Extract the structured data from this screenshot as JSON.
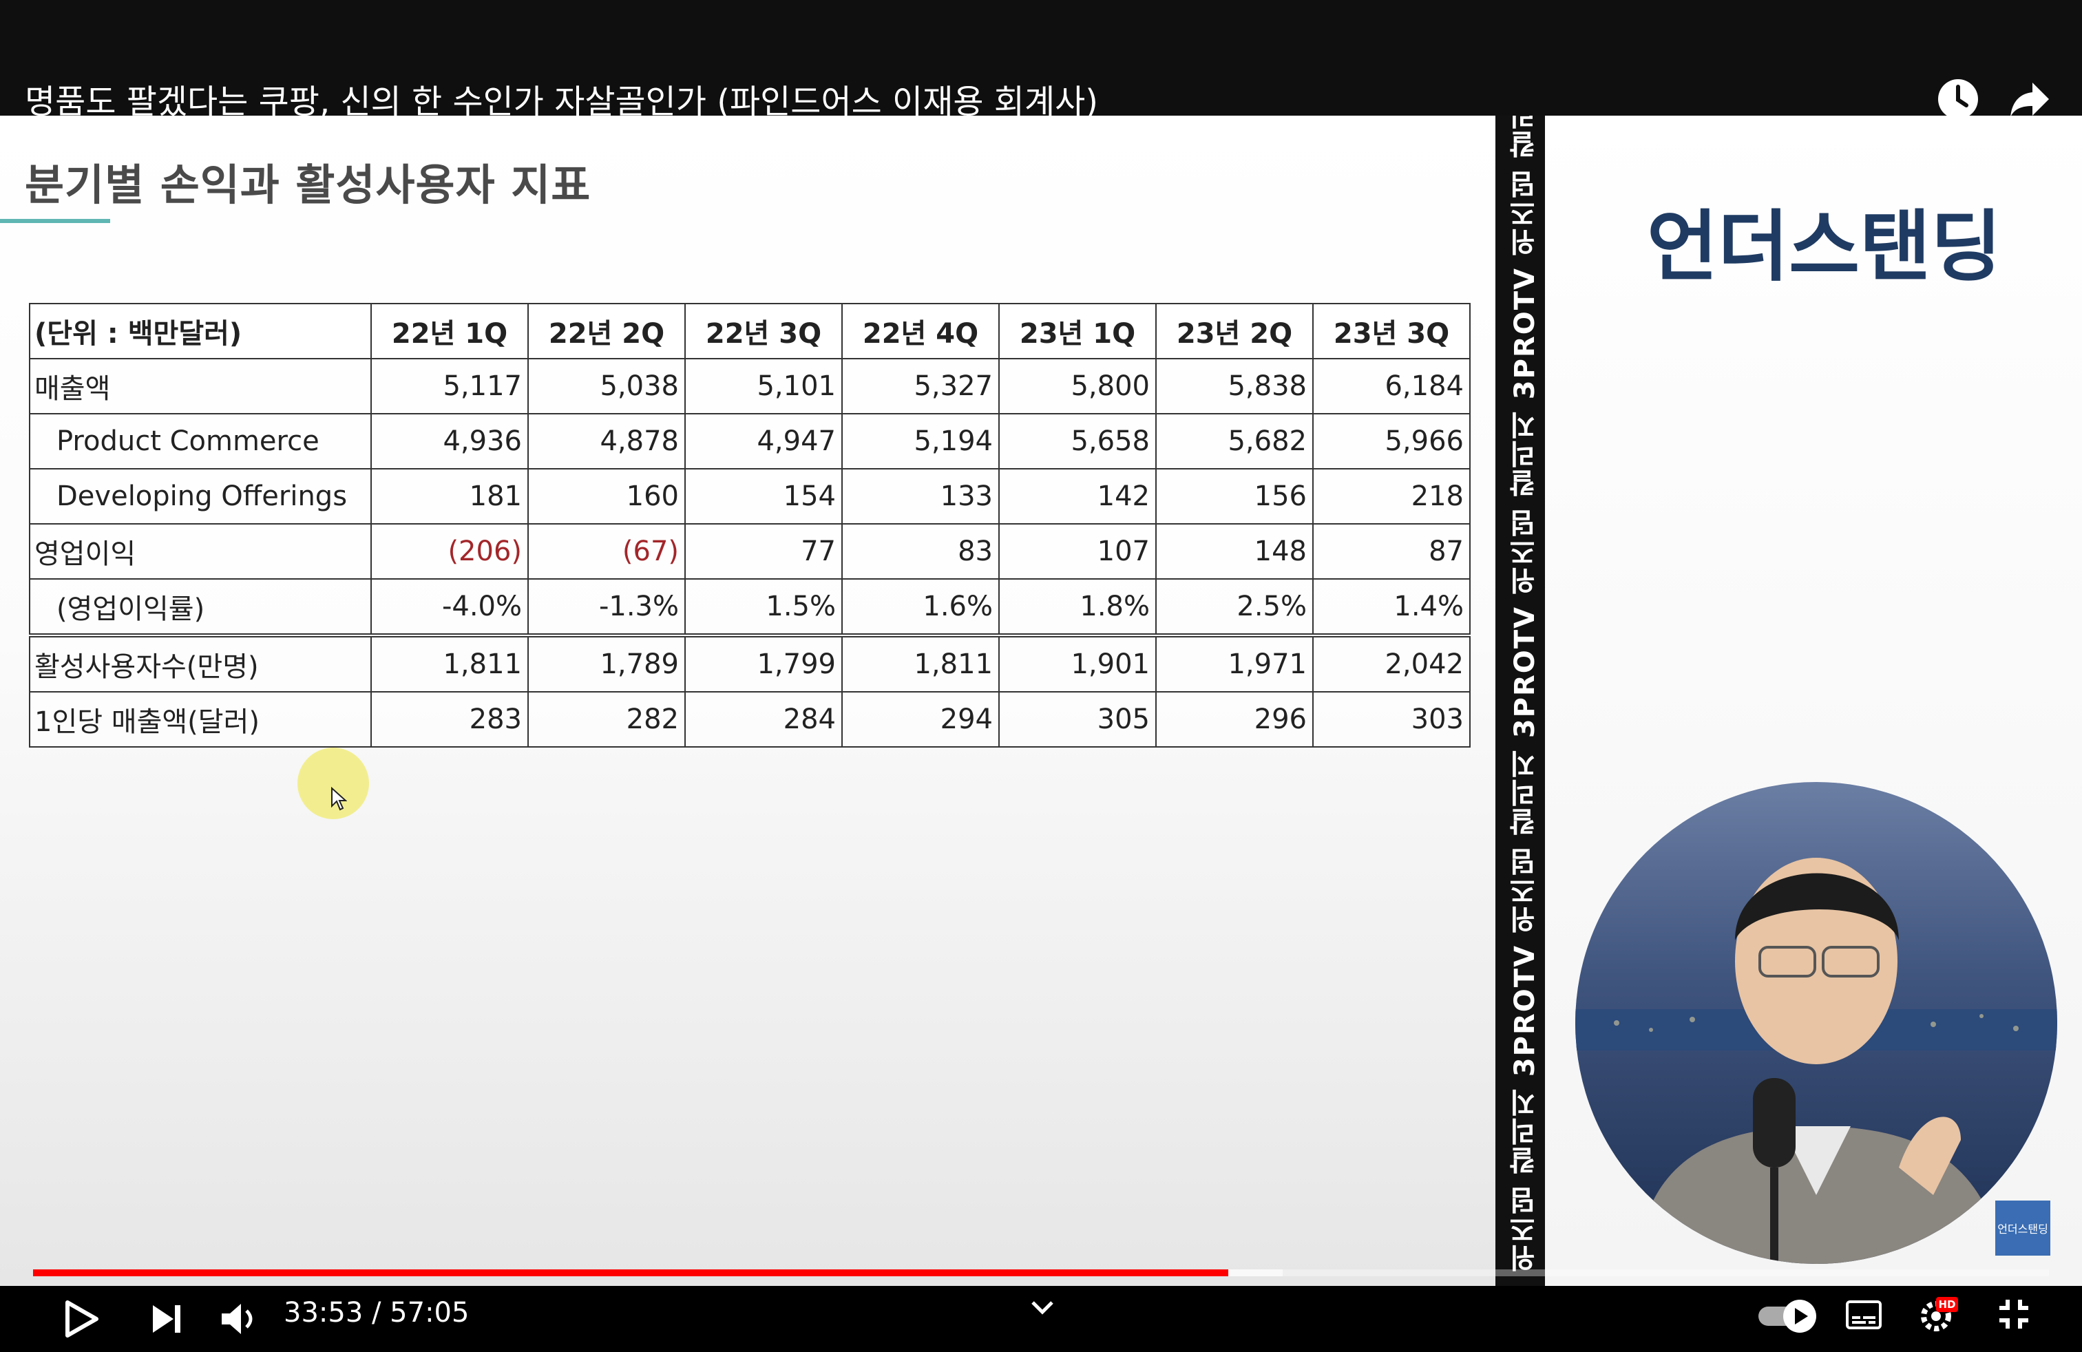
{
  "video": {
    "title": "명품도 팔겠다는 쿠팡, 신의 한 수인가 자살골인가 (파인드어스 이재용 회계사)",
    "current_time": "33:53",
    "duration": "57:05",
    "time_display": "33:53 / 57:05",
    "progress": 0.593,
    "buffered": 0.62,
    "accent_color": "#ff0000"
  },
  "slide": {
    "title": "분기별 손익과 활성사용자 지표",
    "accent_color": "#5fb6b3",
    "table": {
      "unit_header": "(단위 : 백만달러)",
      "columns": [
        "22년 1Q",
        "22년 2Q",
        "22년 3Q",
        "22년 4Q",
        "23년 1Q",
        "23년 2Q",
        "23년 3Q"
      ],
      "rows": [
        {
          "label": "매출액",
          "values": [
            "5,117",
            "5,038",
            "5,101",
            "5,327",
            "5,800",
            "5,838",
            "6,184"
          ]
        },
        {
          "label": "Product Commerce",
          "values": [
            "4,936",
            "4,878",
            "4,947",
            "5,194",
            "5,658",
            "5,682",
            "5,966"
          ]
        },
        {
          "label": "Developing Offerings",
          "values": [
            "181",
            "160",
            "154",
            "133",
            "142",
            "156",
            "218"
          ]
        },
        {
          "label": "영업이익",
          "values": [
            "(206)",
            "(67)",
            "77",
            "83",
            "107",
            "148",
            "87"
          ]
        },
        {
          "label": "(영업이익률)",
          "values": [
            "-4.0%",
            "-1.3%",
            "1.5%",
            "1.6%",
            "1.8%",
            "2.5%",
            "1.4%"
          ]
        },
        {
          "label": "활성사용자수(만명)",
          "values": [
            "1,811",
            "1,789",
            "1,799",
            "1,811",
            "1,901",
            "1,971",
            "2,042"
          ]
        },
        {
          "label": "1인당 매출액(달러)",
          "values": [
            "283",
            "282",
            "284",
            "294",
            "305",
            "296",
            "303"
          ]
        }
      ],
      "negative_color": "#a3262a"
    }
  },
  "side_strip": {
    "text": "위즈덤 칼리지 3PROTV 위즈덤 칼리지 3PROTV 위즈덤 칼리지 3PROTV 위즈덤 칼리지"
  },
  "brand": {
    "logo_text": "언더스탠딩",
    "badge_text": "언더스탠딩",
    "color": "#1f3b63"
  },
  "icons": {
    "watch_later": "clock-icon",
    "share": "share-icon",
    "play": "play-icon",
    "next": "next-icon",
    "volume": "volume-icon",
    "chapters": "chevron-down-icon",
    "autoplay": "autoplay-toggle",
    "captions": "captions-icon",
    "settings": "gear-icon",
    "quality_badge": "HD",
    "exit_fullscreen": "exit-fullscreen-icon"
  }
}
